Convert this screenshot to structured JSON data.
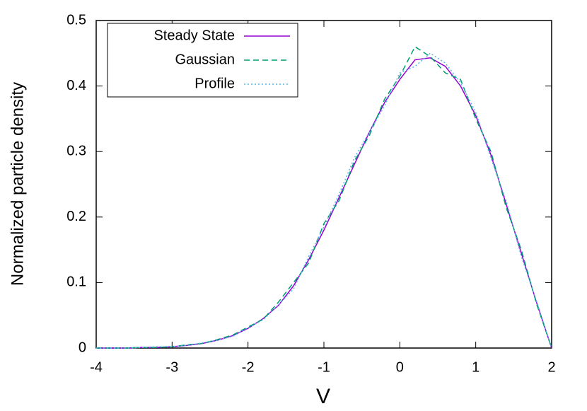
{
  "chart_data": {
    "type": "line",
    "x_label": "V",
    "y_label": "Normalized particle density",
    "x": [
      -4,
      -3.8,
      -3.6,
      -3.4,
      -3.2,
      -3,
      -2.8,
      -2.6,
      -2.4,
      -2.2,
      -2,
      -1.8,
      -1.6,
      -1.4,
      -1.2,
      -1,
      -0.8,
      -0.6,
      -0.4,
      -0.2,
      0,
      0.2,
      0.4,
      0.6,
      0.8,
      1,
      1.2,
      1.4,
      1.6,
      1.8,
      2
    ],
    "series": [
      {
        "name": "Steady State",
        "color": "#9400d3",
        "dash": "solid",
        "values": [
          0,
          0,
          0,
          0.001,
          0.001,
          0.002,
          0.004,
          0.007,
          0.012,
          0.019,
          0.03,
          0.045,
          0.065,
          0.095,
          0.135,
          0.18,
          0.23,
          0.28,
          0.33,
          0.375,
          0.41,
          0.44,
          0.443,
          0.43,
          0.4,
          0.355,
          0.295,
          0.22,
          0.145,
          0.07,
          0
        ]
      },
      {
        "name": "Gaussian",
        "color": "#009e73",
        "dash": "dashed",
        "values": [
          0,
          0,
          0,
          0.001,
          0.001,
          0.002,
          0.005,
          0.007,
          0.013,
          0.02,
          0.032,
          0.044,
          0.07,
          0.1,
          0.13,
          0.19,
          0.225,
          0.285,
          0.325,
          0.38,
          0.415,
          0.46,
          0.445,
          0.42,
          0.41,
          0.35,
          0.3,
          0.215,
          0.15,
          0.068,
          0
        ]
      },
      {
        "name": "Profile",
        "color": "#56b4e9",
        "dash": "dotted",
        "values": [
          0,
          0,
          0,
          0.001,
          0.002,
          0.002,
          0.004,
          0.008,
          0.012,
          0.018,
          0.031,
          0.043,
          0.066,
          0.09,
          0.14,
          0.185,
          0.235,
          0.29,
          0.33,
          0.37,
          0.42,
          0.43,
          0.45,
          0.435,
          0.405,
          0.36,
          0.29,
          0.225,
          0.14,
          0.072,
          0
        ]
      }
    ],
    "xlim": [
      -4,
      2
    ],
    "xticks": [
      -4,
      -3,
      -2,
      -1,
      0,
      1,
      2
    ],
    "ylim": [
      0,
      0.5
    ],
    "yticks": [
      0,
      0.1,
      0.2,
      0.3,
      0.4,
      0.5
    ],
    "legend": "top-left"
  }
}
